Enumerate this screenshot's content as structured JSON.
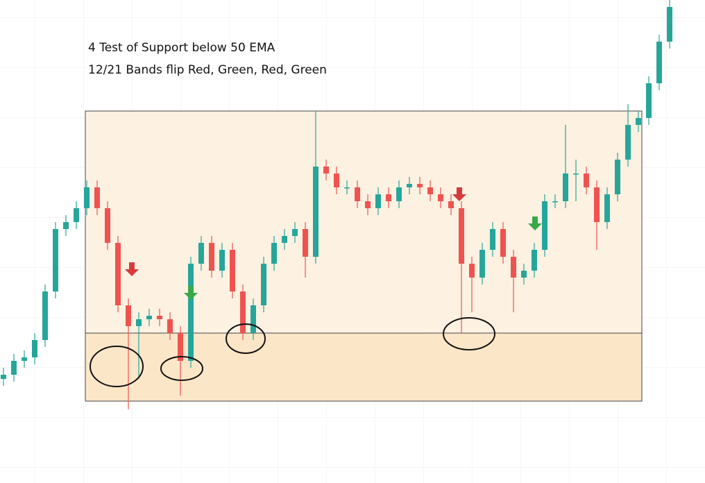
{
  "chart_data": {
    "type": "candlestick",
    "annotations": [
      "4 Test of Support below 50 EMA",
      "12/21 Bands flip Red, Green, Red, Green"
    ],
    "ylim": [
      0,
      696
    ],
    "up_color": "#26a69a",
    "down_color": "#ef5350",
    "open": [
      150,
      156,
      176,
      181,
      206,
      276,
      366,
      376,
      396,
      426,
      396,
      346,
      256,
      226,
      236,
      241,
      236,
      216,
      176,
      316,
      346,
      306,
      336,
      276,
      216,
      256,
      316,
      346,
      356,
      366,
      326,
      456,
      446,
      426,
      426,
      406,
      396,
      416,
      406,
      426,
      431,
      426,
      416,
      406,
      396,
      316,
      296,
      336,
      366,
      326,
      296,
      306,
      336,
      406,
      406,
      446,
      446,
      426,
      376,
      416,
      466,
      516,
      526,
      576,
      636
    ],
    "high": [
      166,
      186,
      191,
      216,
      286,
      376,
      386,
      406,
      436,
      436,
      406,
      356,
      266,
      246,
      251,
      251,
      246,
      226,
      326,
      356,
      356,
      346,
      346,
      286,
      266,
      326,
      356,
      366,
      376,
      376,
      536,
      466,
      456,
      436,
      436,
      416,
      426,
      426,
      436,
      441,
      441,
      436,
      426,
      416,
      406,
      326,
      346,
      376,
      376,
      336,
      316,
      346,
      416,
      416,
      516,
      466,
      456,
      436,
      426,
      476,
      546,
      536,
      586,
      646,
      696
    ],
    "low": [
      140,
      146,
      166,
      171,
      196,
      266,
      356,
      366,
      386,
      386,
      336,
      246,
      106,
      150,
      226,
      226,
      206,
      126,
      166,
      306,
      296,
      296,
      266,
      206,
      206,
      246,
      306,
      336,
      346,
      296,
      316,
      436,
      416,
      416,
      396,
      386,
      386,
      396,
      396,
      416,
      416,
      406,
      396,
      386,
      216,
      246,
      286,
      326,
      316,
      246,
      286,
      296,
      326,
      396,
      396,
      406,
      416,
      336,
      366,
      406,
      456,
      506,
      516,
      566,
      626
    ],
    "close": [
      156,
      176,
      181,
      206,
      276,
      366,
      376,
      396,
      426,
      396,
      346,
      256,
      226,
      236,
      241,
      236,
      216,
      176,
      316,
      346,
      306,
      336,
      276,
      216,
      256,
      316,
      346,
      356,
      366,
      326,
      456,
      446,
      426,
      426,
      406,
      396,
      416,
      406,
      426,
      431,
      426,
      416,
      406,
      396,
      316,
      296,
      336,
      366,
      326,
      296,
      306,
      336,
      406,
      406,
      446,
      446,
      426,
      376,
      416,
      466,
      516,
      526,
      576,
      636,
      686
    ]
  }
}
